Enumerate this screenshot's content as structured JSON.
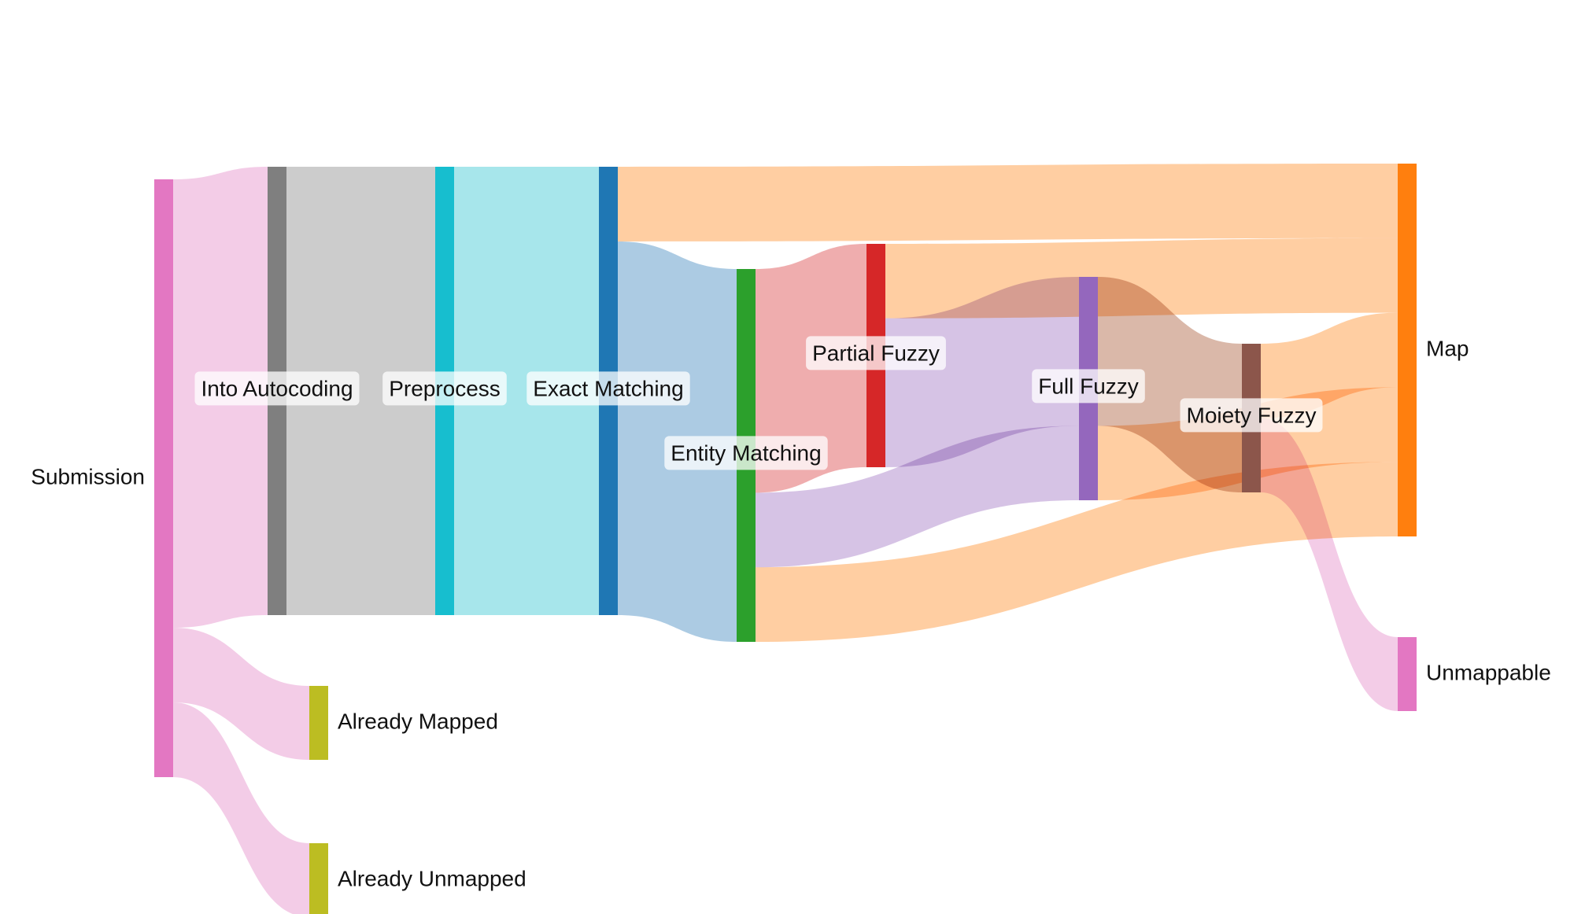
{
  "diagram": {
    "type": "sankey",
    "nodes": [
      {
        "id": "submission",
        "label": "Submission",
        "color": "#e377c2"
      },
      {
        "id": "into_autocoding",
        "label": "Into Autocoding",
        "color": "#7f7f7f"
      },
      {
        "id": "already_mapped",
        "label": "Already Mapped",
        "color": "#bcbd22"
      },
      {
        "id": "already_unmapped",
        "label": "Already Unmapped",
        "color": "#bcbd22"
      },
      {
        "id": "preprocess",
        "label": "Preprocess",
        "color": "#17becf"
      },
      {
        "id": "exact_matching",
        "label": "Exact Matching",
        "color": "#1f77b4"
      },
      {
        "id": "entity_matching",
        "label": "Entity Matching",
        "color": "#2ca02c"
      },
      {
        "id": "partial_fuzzy",
        "label": "Partial Fuzzy",
        "color": "#d62728"
      },
      {
        "id": "full_fuzzy",
        "label": "Full Fuzzy",
        "color": "#9467bd"
      },
      {
        "id": "moiety_fuzzy",
        "label": "Moiety Fuzzy",
        "color": "#8c564b"
      },
      {
        "id": "map",
        "label": "Map",
        "color": "#ff7f0e"
      },
      {
        "id": "unmappable",
        "label": "Unmappable",
        "color": "#e377c2"
      }
    ],
    "links": [
      {
        "source": "submission",
        "target": "into_autocoding",
        "value": 60,
        "color": "#f1c3e3"
      },
      {
        "source": "submission",
        "target": "already_mapped",
        "value": 10,
        "color": "#f1c3e3"
      },
      {
        "source": "submission",
        "target": "already_unmapped",
        "value": 10,
        "color": "#f1c3e3"
      },
      {
        "source": "into_autocoding",
        "target": "preprocess",
        "value": 60,
        "color": "#c3c3c3"
      },
      {
        "source": "preprocess",
        "target": "exact_matching",
        "value": 60,
        "color": "#98e2e8"
      },
      {
        "source": "exact_matching",
        "target": "map",
        "value": 10,
        "color": "#ffc592"
      },
      {
        "source": "exact_matching",
        "target": "entity_matching",
        "value": 50,
        "color": "#9dc2de"
      },
      {
        "source": "entity_matching",
        "target": "partial_fuzzy",
        "value": 30,
        "color": "#ec9fa0"
      },
      {
        "source": "entity_matching",
        "target": "full_fuzzy",
        "value": 10,
        "color": "#cfb8e0"
      },
      {
        "source": "entity_matching",
        "target": "map",
        "value": 10,
        "color": "#ffc592"
      },
      {
        "source": "partial_fuzzy",
        "target": "map",
        "value": 10,
        "color": "#ffc592"
      },
      {
        "source": "partial_fuzzy",
        "target": "full_fuzzy",
        "value": 20,
        "color": "#cfb8e0"
      },
      {
        "source": "full_fuzzy",
        "target": "moiety_fuzzy",
        "value": 20,
        "color": "#d4ac9a"
      },
      {
        "source": "full_fuzzy",
        "target": "map",
        "value": 10,
        "color": "#ffc592"
      },
      {
        "source": "moiety_fuzzy",
        "target": "map",
        "value": 10,
        "color": "#ffc592"
      },
      {
        "source": "moiety_fuzzy",
        "target": "unmappable",
        "value": 10,
        "color": "#f1c3e3"
      }
    ]
  }
}
